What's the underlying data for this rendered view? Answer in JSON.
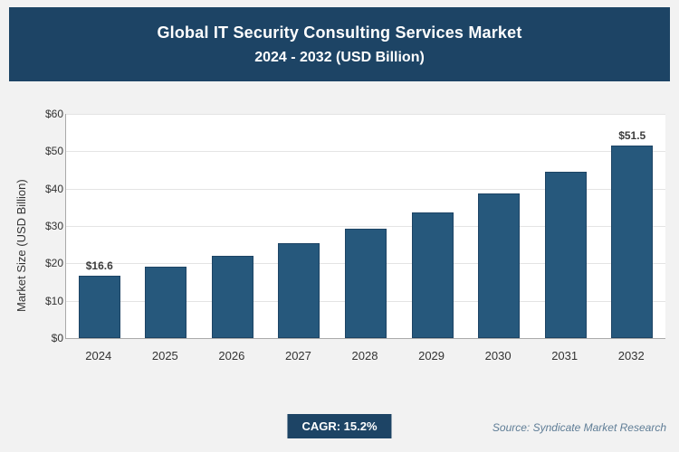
{
  "header": {
    "title_line1": "Global IT Security Consulting Services Market",
    "title_line2": "2024 - 2032 (USD Billion)",
    "bg_color": "#1d4465",
    "text_color": "#ffffff"
  },
  "chart_data": {
    "type": "bar",
    "title": "Global IT Security Consulting Services Market 2024 - 2032 (USD Billion)",
    "categories": [
      "2024",
      "2025",
      "2026",
      "2027",
      "2028",
      "2029",
      "2030",
      "2031",
      "2032"
    ],
    "values": [
      16.6,
      19.1,
      22.0,
      25.3,
      29.2,
      33.6,
      38.7,
      44.6,
      51.5
    ],
    "value_labels": [
      {
        "index": 0,
        "text": "$16.6"
      },
      {
        "index": 8,
        "text": "$51.5"
      }
    ],
    "xlabel": "",
    "ylabel": "Market Size (USD Billion)",
    "ylim": [
      0,
      60
    ],
    "ytick_step": 10,
    "ytick_labels": [
      "$0",
      "$10",
      "$20",
      "$30",
      "$40",
      "$50",
      "$60"
    ],
    "grid": "horizontal",
    "legend_position": "none",
    "bar_color": "#26587c",
    "bar_border_color": "#1d4465"
  },
  "footer": {
    "cagr_label": "CAGR: 15.2%",
    "source": "Source: Syndicate Market Research"
  }
}
